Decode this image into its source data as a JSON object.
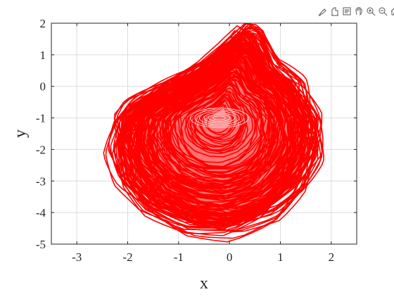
{
  "toolbar": {
    "icons": [
      "brush-icon",
      "data-tips-icon",
      "legend-icon",
      "pan-icon",
      "zoom-in-icon",
      "zoom-out-icon",
      "home-icon"
    ]
  },
  "chart_data": {
    "type": "line",
    "xlabel": "x",
    "ylabel": "y",
    "xlim": [
      -3.5,
      2.5
    ],
    "ylim": [
      -5,
      2
    ],
    "xticks": [
      "-3",
      "-2",
      "-1",
      "0",
      "1",
      "2"
    ],
    "xtick_values": [
      -3,
      -2,
      -1,
      0,
      1,
      2
    ],
    "yticks": [
      "2",
      "1",
      "0",
      "-1",
      "-2",
      "-3",
      "-4",
      "-5"
    ],
    "ytick_values": [
      2,
      1,
      0,
      -1,
      -2,
      -3,
      -4,
      -5
    ],
    "grid": true,
    "series": [
      {
        "color": "#ff0000",
        "description_points_outline": [
          [
            -2.2,
            -1.0
          ],
          [
            -1.9,
            -0.5
          ],
          [
            -1.2,
            0.1
          ],
          [
            -0.5,
            0.7
          ],
          [
            0.0,
            1.4
          ],
          [
            0.25,
            1.9
          ],
          [
            0.5,
            1.7
          ],
          [
            0.8,
            0.7
          ],
          [
            1.3,
            0.1
          ],
          [
            1.65,
            -1.0
          ],
          [
            1.65,
            -2.2
          ],
          [
            1.3,
            -3.3
          ],
          [
            0.8,
            -4.1
          ],
          [
            0.0,
            -4.6
          ],
          [
            -0.8,
            -4.5
          ],
          [
            -1.6,
            -3.9
          ],
          [
            -2.1,
            -3.0
          ],
          [
            -2.3,
            -2.0
          ]
        ],
        "center": [
          -0.2,
          -1.0
        ]
      }
    ]
  }
}
